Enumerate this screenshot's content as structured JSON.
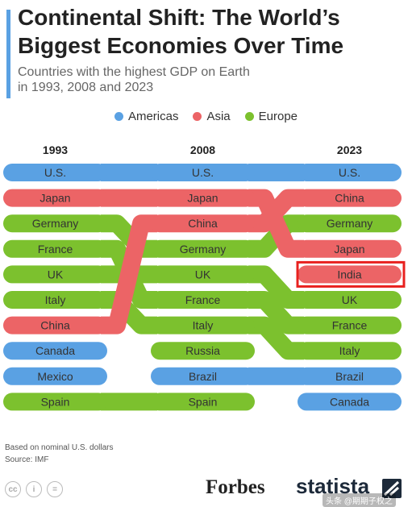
{
  "header": {
    "title_line1": "Continental Shift: The World’s",
    "title_line2": "Biggest Economies Over Time",
    "subtitle_line1": "Countries with the highest GDP on Earth",
    "subtitle_line2": "in 1993, 2008 and 2023"
  },
  "legend": {
    "items": [
      {
        "label": "Americas",
        "color": "#5aa1e3"
      },
      {
        "label": "Asia",
        "color": "#ec6466"
      },
      {
        "label": "Europe",
        "color": "#7cc12e"
      }
    ]
  },
  "chart_data": {
    "type": "table",
    "columns": [
      "1993",
      "2008",
      "2023"
    ],
    "rankings": [
      {
        "country": "U.S.",
        "region": "Americas",
        "ranks": [
          1,
          1,
          1
        ]
      },
      {
        "country": "Japan",
        "region": "Asia",
        "ranks": [
          2,
          2,
          4
        ]
      },
      {
        "country": "Germany",
        "region": "Europe",
        "ranks": [
          3,
          4,
          3
        ]
      },
      {
        "country": "France",
        "region": "Europe",
        "ranks": [
          4,
          6,
          7
        ]
      },
      {
        "country": "UK",
        "region": "Europe",
        "ranks": [
          5,
          5,
          6
        ]
      },
      {
        "country": "Italy",
        "region": "Europe",
        "ranks": [
          6,
          7,
          8
        ]
      },
      {
        "country": "China",
        "region": "Asia",
        "ranks": [
          7,
          3,
          2
        ]
      },
      {
        "country": "Canada",
        "region": "Americas",
        "ranks": [
          8,
          null,
          10
        ]
      },
      {
        "country": "Mexico",
        "region": "Americas",
        "ranks": [
          9,
          null,
          null
        ]
      },
      {
        "country": "Spain",
        "region": "Europe",
        "ranks": [
          10,
          10,
          null
        ]
      },
      {
        "country": "Russia",
        "region": "Europe",
        "ranks": [
          null,
          8,
          null
        ]
      },
      {
        "country": "Brazil",
        "region": "Americas",
        "ranks": [
          null,
          9,
          9
        ]
      },
      {
        "country": "India",
        "region": "Asia",
        "ranks": [
          null,
          null,
          5
        ]
      }
    ],
    "highlighted": {
      "country": "India",
      "column": "2023",
      "color": "#e8211f"
    }
  },
  "footer": {
    "note": "Based on nominal U.S. dollars",
    "source": "Source: IMF",
    "cc_icons": [
      "cc-icon",
      "by-icon",
      "equals-icon"
    ],
    "partner": "Forbes",
    "brand": "statista",
    "watermark": "头条 @期期子权之"
  }
}
